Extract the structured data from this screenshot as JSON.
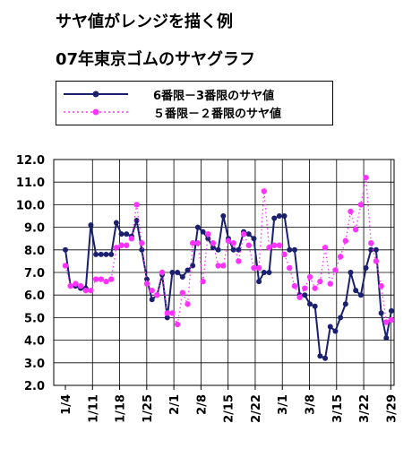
{
  "page": {
    "title_line1": "サヤ値がレンジを描く例",
    "title_line2": "07年東京ゴムのサヤグラフ"
  },
  "colors": {
    "series1": "#1a1f6e",
    "series2": "#ff33ff",
    "grid": "#000000"
  },
  "chart_data": {
    "type": "line",
    "title": "",
    "xlabel": "",
    "ylabel": "",
    "ylim": [
      2.0,
      12.0
    ],
    "y_ticks": [
      "2.0",
      "3.0",
      "4.0",
      "5.0",
      "6.0",
      "7.0",
      "8.0",
      "9.0",
      "10.0",
      "11.0",
      "12.0"
    ],
    "x_tick_labels": [
      "1/4",
      "1/11",
      "1/18",
      "1/25",
      "2/1",
      "2/8",
      "2/15",
      "2/22",
      "3/1",
      "3/8",
      "3/15",
      "3/22",
      "3/29"
    ],
    "grid": true,
    "legend_position": "top",
    "series": [
      {
        "name": "6番限－3番限のサヤ値",
        "style": "solid",
        "values": [
          8.0,
          6.4,
          6.4,
          6.3,
          6.3,
          9.1,
          7.8,
          7.8,
          7.8,
          7.8,
          9.2,
          8.7,
          8.7,
          8.6,
          9.3,
          8.0,
          6.7,
          5.8,
          6.0,
          6.9,
          5.0,
          7.0,
          7.0,
          6.8,
          7.1,
          7.3,
          9.0,
          8.8,
          8.5,
          8.1,
          8.0,
          9.5,
          8.5,
          8.0,
          8.0,
          8.8,
          8.7,
          8.5,
          6.6,
          7.0,
          7.0,
          9.4,
          9.5,
          9.5,
          8.0,
          8.0,
          6.0,
          6.0,
          5.6,
          5.5,
          3.3,
          3.2,
          4.6,
          4.4,
          5.0,
          5.6,
          7.0,
          6.2,
          6.0,
          7.2,
          8.0,
          8.0,
          5.2,
          4.1,
          5.3
        ]
      },
      {
        "name": "５番限－２番限のサヤ値",
        "style": "dotted",
        "values": [
          7.3,
          6.4,
          6.5,
          6.4,
          6.2,
          6.2,
          6.7,
          6.7,
          6.6,
          6.7,
          8.1,
          8.2,
          8.2,
          8.5,
          10.0,
          8.3,
          6.5,
          6.2,
          6.0,
          7.0,
          5.2,
          5.2,
          4.7,
          6.1,
          5.6,
          8.3,
          8.3,
          6.6,
          8.7,
          8.3,
          7.3,
          7.3,
          8.4,
          8.3,
          7.5,
          8.7,
          8.2,
          7.2,
          7.2,
          10.6,
          8.1,
          8.2,
          8.2,
          7.8,
          7.2,
          6.4,
          5.9,
          6.3,
          6.8,
          6.3,
          6.6,
          8.1,
          6.5,
          7.1,
          7.7,
          8.4,
          9.7,
          8.9,
          10.0,
          11.2,
          8.3,
          7.5,
          6.4,
          4.8,
          4.9
        ]
      }
    ]
  }
}
